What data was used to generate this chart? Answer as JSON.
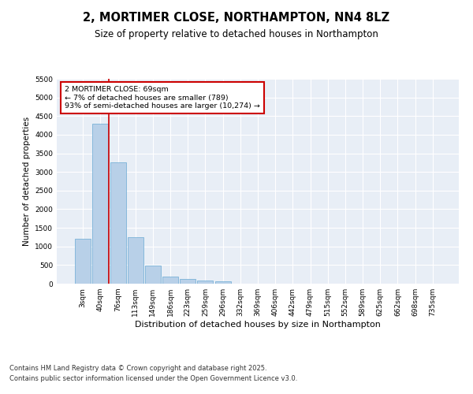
{
  "title": "2, MORTIMER CLOSE, NORTHAMPTON, NN4 8LZ",
  "subtitle": "Size of property relative to detached houses in Northampton",
  "xlabel": "Distribution of detached houses by size in Northampton",
  "ylabel": "Number of detached properties",
  "categories": [
    "3sqm",
    "40sqm",
    "76sqm",
    "113sqm",
    "149sqm",
    "186sqm",
    "223sqm",
    "259sqm",
    "296sqm",
    "332sqm",
    "369sqm",
    "406sqm",
    "442sqm",
    "479sqm",
    "515sqm",
    "552sqm",
    "589sqm",
    "625sqm",
    "662sqm",
    "698sqm",
    "735sqm"
  ],
  "bar_heights": [
    1200,
    4300,
    3250,
    1250,
    480,
    200,
    130,
    80,
    60,
    0,
    0,
    0,
    0,
    0,
    0,
    0,
    0,
    0,
    0,
    0,
    0
  ],
  "bar_color": "#b8d0e8",
  "bar_edge_color": "#6aaad4",
  "background_color": "#e8eef6",
  "grid_color": "#ffffff",
  "vline_color": "#cc0000",
  "annotation_text": "2 MORTIMER CLOSE: 69sqm\n← 7% of detached houses are smaller (789)\n93% of semi-detached houses are larger (10,274) →",
  "annotation_box_color": "#ffffff",
  "annotation_box_edge": "#cc0000",
  "ylim": [
    0,
    5500
  ],
  "yticks": [
    0,
    500,
    1000,
    1500,
    2000,
    2500,
    3000,
    3500,
    4000,
    4500,
    5000,
    5500
  ],
  "footer_line1": "Contains HM Land Registry data © Crown copyright and database right 2025.",
  "footer_line2": "Contains public sector information licensed under the Open Government Licence v3.0.",
  "title_fontsize": 10.5,
  "subtitle_fontsize": 8.5,
  "axis_label_fontsize": 7.5,
  "tick_fontsize": 6.5,
  "annotation_fontsize": 6.8,
  "footer_fontsize": 6.0
}
